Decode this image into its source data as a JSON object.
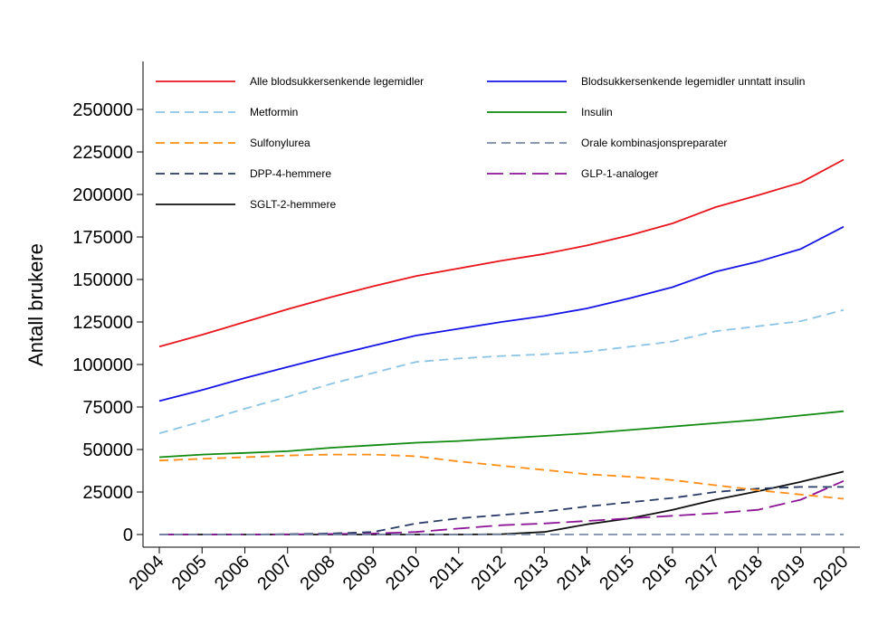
{
  "chart_data": {
    "type": "line",
    "title": "",
    "xlabel": "",
    "ylabel": "Antall brukere",
    "x": [
      "2004",
      "2005",
      "2006",
      "2007",
      "2008",
      "2009",
      "2010",
      "2011",
      "2012",
      "2013",
      "2014",
      "2015",
      "2016",
      "2017",
      "2018",
      "2019",
      "2020"
    ],
    "ylim": [
      0,
      275000
    ],
    "yticks": [
      0,
      25000,
      50000,
      75000,
      100000,
      125000,
      150000,
      175000,
      200000,
      225000,
      250000
    ],
    "ytick_labels": [
      "0",
      "25000",
      "50000",
      "75000",
      "100000",
      "125000",
      "150000",
      "175000",
      "200000",
      "225000",
      "250000"
    ],
    "grid": false,
    "legend_position": "top-inside",
    "series": [
      {
        "name": "Alle blodsukkersenkende legemidler",
        "color": "#e8141c",
        "dash": "solid",
        "values": [
          110500,
          117500,
          125000,
          132500,
          139500,
          146000,
          152000,
          156500,
          161000,
          165000,
          170000,
          176000,
          183000,
          192500,
          199500,
          207000,
          220500
        ]
      },
      {
        "name": "Blodsukkersenkende legemidler unntatt insulin",
        "color": "#1414e6",
        "dash": "solid",
        "values": [
          78500,
          85000,
          92000,
          98500,
          105000,
          111000,
          117000,
          121000,
          125000,
          128500,
          133000,
          139000,
          145500,
          154500,
          160500,
          168000,
          181000
        ]
      },
      {
        "name": "Metformin",
        "color": "#8cc4e6",
        "dash": "dash",
        "values": [
          59500,
          66500,
          74000,
          81000,
          88500,
          95000,
          101500,
          103500,
          105000,
          106000,
          107500,
          110500,
          113500,
          119500,
          122500,
          125500,
          132000
        ]
      },
      {
        "name": "Insulin",
        "color": "#108a10",
        "dash": "solid",
        "values": [
          45500,
          47000,
          48000,
          49000,
          51000,
          52500,
          54000,
          55000,
          56500,
          58000,
          59500,
          61500,
          63500,
          65500,
          67500,
          70000,
          72500
        ]
      },
      {
        "name": "Sulfonylurea",
        "color": "#ff8c14",
        "dash": "dash",
        "values": [
          43500,
          44500,
          45500,
          46500,
          47000,
          47000,
          46000,
          43000,
          40500,
          38000,
          35500,
          34000,
          32000,
          29000,
          26000,
          23500,
          21000
        ]
      },
      {
        "name": "Orale kombinasjonspreparater",
        "color": "#7b8aaa",
        "dash": "dash",
        "values": [
          0,
          0,
          0,
          0,
          0,
          0,
          0,
          0,
          0,
          0,
          0,
          0,
          0,
          0,
          0,
          0,
          0
        ]
      },
      {
        "name": "DPP-4-hemmere",
        "color": "#2a3a66",
        "dash": "dash",
        "values": [
          0,
          0,
          0,
          200,
          600,
          1500,
          6500,
          9500,
          11500,
          13500,
          16500,
          19000,
          21500,
          25000,
          27000,
          28000,
          28000
        ]
      },
      {
        "name": "GLP-1-analoger",
        "color": "#8c1496",
        "dash": "longdash",
        "values": [
          0,
          0,
          0,
          100,
          300,
          600,
          1500,
          3500,
          5500,
          6500,
          8000,
          9500,
          11000,
          12500,
          14500,
          20500,
          31500
        ]
      },
      {
        "name": "SGLT-2-hemmere",
        "color": "#101010",
        "dash": "solid",
        "values": [
          0,
          0,
          0,
          0,
          0,
          0,
          0,
          0,
          200,
          1500,
          6000,
          9500,
          14500,
          20500,
          25500,
          31000,
          37000
        ]
      }
    ]
  }
}
